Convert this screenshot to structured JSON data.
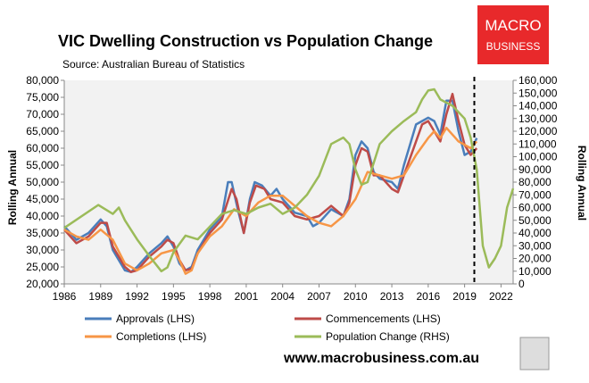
{
  "chart_data": {
    "type": "line",
    "title": "VIC Dwelling Construction vs Population Change",
    "subtitle": "Source: Australian Bureau of Statistics",
    "y_label": "Rolling Annual",
    "y2_label": "Rolling Annual",
    "brand": [
      "MACRO",
      "BUSINESS"
    ],
    "footer": "www.macrobusiness.com.au",
    "xlim": [
      1986,
      2023
    ],
    "xticks": [
      1986,
      1989,
      1992,
      1995,
      1998,
      2001,
      2004,
      2007,
      2010,
      2013,
      2016,
      2019,
      2022
    ],
    "ylim": [
      20000,
      80000
    ],
    "yticks": [
      {
        "value": 20000,
        "label": "20,000"
      },
      {
        "value": 25000,
        "label": "25,000"
      },
      {
        "value": 30000,
        "label": "30,000"
      },
      {
        "value": 35000,
        "label": "35,000"
      },
      {
        "value": 40000,
        "label": "40,000"
      },
      {
        "value": 45000,
        "label": "45,000"
      },
      {
        "value": 50000,
        "label": "50,000"
      },
      {
        "value": 55000,
        "label": "55,000"
      },
      {
        "value": 60000,
        "label": "60,000"
      },
      {
        "value": 65000,
        "label": "65,000"
      },
      {
        "value": 70000,
        "label": "70,000"
      },
      {
        "value": 75000,
        "label": "75,000"
      },
      {
        "value": 80000,
        "label": "80,000"
      }
    ],
    "y2lim": [
      0,
      160000
    ],
    "y2ticks": [
      0,
      {
        "value": 10000,
        "label": "10,000"
      },
      {
        "value": 20000,
        "label": "20,000"
      },
      {
        "value": 30000,
        "label": "30,000"
      },
      {
        "value": 40000,
        "label": "40,000"
      },
      {
        "value": 50000,
        "label": "50,000"
      },
      {
        "value": 60000,
        "label": "60,000"
      },
      {
        "value": 70000,
        "label": "70,000"
      },
      {
        "value": 80000,
        "label": "80,000"
      },
      {
        "value": 90000,
        "label": "90,000"
      },
      {
        "value": 100000,
        "label": "100,000"
      },
      {
        "value": 110000,
        "label": "110,000"
      },
      {
        "value": 120000,
        "label": "120,000"
      },
      {
        "value": 130000,
        "label": "130,000"
      },
      {
        "value": 140000,
        "label": "140,000"
      },
      {
        "value": 150000,
        "label": "150,000"
      },
      {
        "value": 160000,
        "label": "160,000"
      }
    ],
    "vline": 2019.8,
    "series": [
      {
        "name": "Approvals (LHS)",
        "color": "#4a7ebb",
        "x": [
          1986,
          1987,
          1988,
          1989,
          1989.5,
          1990,
          1991,
          1991.5,
          1992,
          1993,
          1994,
          1994.5,
          1995,
          1995.5,
          1996,
          1996.5,
          1997,
          1998,
          1999,
          1999.5,
          1999.8,
          2000.3,
          2000.8,
          2001.3,
          2001.7,
          2002.3,
          2003,
          2003.5,
          2004,
          2005,
          2006,
          2006.5,
          2007,
          2008,
          2009,
          2009.5,
          2010,
          2010.5,
          2011,
          2011.5,
          2012,
          2013,
          2013.5,
          2014,
          2015,
          2015.5,
          2016,
          2016.5,
          2017,
          2017.5,
          2018,
          2018.5,
          2019,
          2019.5,
          2020
        ],
        "values": [
          37000,
          33000,
          35000,
          39000,
          37000,
          30000,
          24000,
          23500,
          25000,
          29000,
          32000,
          34000,
          31000,
          26000,
          24000,
          25000,
          30000,
          36000,
          40000,
          50000,
          50000,
          42000,
          35000,
          45000,
          50000,
          49000,
          46000,
          48000,
          45000,
          41000,
          40000,
          37000,
          38000,
          42000,
          40000,
          45000,
          58000,
          62000,
          60000,
          53000,
          51000,
          50000,
          48000,
          55000,
          67000,
          68000,
          69000,
          68000,
          64000,
          74000,
          74000,
          65000,
          58000,
          59000,
          63000
        ]
      },
      {
        "name": "Commencements (LHS)",
        "color": "#be4b48",
        "x": [
          1986,
          1987,
          1988,
          1989,
          1989.5,
          1990,
          1991,
          1991.5,
          1992,
          1993,
          1994,
          1994.5,
          1995,
          1995.5,
          1996,
          1996.5,
          1997,
          1998,
          1999,
          1999.8,
          2000.2,
          2000.8,
          2001.3,
          2001.8,
          2002.5,
          2003,
          2004,
          2005,
          2006,
          2007,
          2008,
          2009,
          2009.5,
          2010,
          2010.5,
          2011,
          2011.5,
          2012,
          2013,
          2013.5,
          2014,
          2015,
          2015.5,
          2016,
          2016.5,
          2017,
          2017.5,
          2018,
          2018.5,
          2019,
          2019.5,
          2020
        ],
        "values": [
          36000,
          32000,
          34000,
          38000,
          38000,
          31000,
          25000,
          23500,
          24000,
          28000,
          31000,
          33000,
          32000,
          27000,
          24000,
          24500,
          29000,
          35000,
          39000,
          48000,
          45000,
          35000,
          44000,
          49000,
          48000,
          45000,
          44000,
          40000,
          39000,
          40000,
          43000,
          40000,
          44000,
          55000,
          60000,
          59000,
          52000,
          52000,
          48000,
          47000,
          52000,
          62000,
          67000,
          68000,
          65000,
          62000,
          70000,
          76000,
          68000,
          61000,
          58000,
          60000
        ]
      },
      {
        "name": "Completions (LHS)",
        "color": "#f79646",
        "x": [
          1986,
          1987,
          1988,
          1989,
          1990,
          1991,
          1992,
          1993,
          1994,
          1995,
          1995.5,
          1996,
          1996.5,
          1997,
          1998,
          1999,
          2000,
          2001,
          2002,
          2003,
          2004,
          2005,
          2006,
          2007,
          2008,
          2009,
          2010,
          2011,
          2012,
          2013,
          2014,
          2015,
          2016,
          2016.5,
          2017,
          2017.5,
          2018,
          2018.5,
          2019,
          2019.5,
          2020
        ],
        "values": [
          36000,
          34000,
          33000,
          36000,
          33000,
          26000,
          24000,
          26000,
          29000,
          30000,
          27000,
          23000,
          24000,
          29000,
          34000,
          37000,
          42000,
          40000,
          44000,
          46000,
          46000,
          43000,
          40000,
          38000,
          37000,
          40000,
          45000,
          53000,
          52000,
          51000,
          52000,
          58000,
          63000,
          65000,
          63000,
          66000,
          64000,
          62000,
          61000,
          60000,
          62000
        ]
      },
      {
        "name": "Population Change (RHS)",
        "color": "#9bbb59",
        "axis": "y2",
        "x": [
          1986,
          1988.8,
          1990,
          1990.5,
          1991,
          1992,
          1993,
          1994,
          1994.5,
          1995,
          1996,
          1997,
          1998,
          1999,
          2000,
          2001,
          2002,
          2003,
          2004,
          2005,
          2006,
          2007,
          2008,
          2009,
          2009.5,
          2010,
          2010.5,
          2011,
          2012,
          2013,
          2014,
          2015,
          2015.5,
          2016,
          2016.5,
          2017,
          2018,
          2019,
          2019.5,
          2020,
          2020.5,
          2021,
          2021.5,
          2022,
          2022.5,
          2023
        ],
        "values": [
          44000,
          62000,
          55000,
          60000,
          50000,
          35000,
          22000,
          10000,
          13000,
          25000,
          38000,
          35000,
          45000,
          55000,
          58000,
          55000,
          60000,
          63000,
          55000,
          60000,
          70000,
          85000,
          110000,
          115000,
          110000,
          90000,
          78000,
          80000,
          110000,
          120000,
          128000,
          135000,
          145000,
          152000,
          153000,
          145000,
          140000,
          130000,
          115000,
          90000,
          30000,
          13000,
          20000,
          30000,
          60000,
          75000
        ]
      }
    ]
  }
}
